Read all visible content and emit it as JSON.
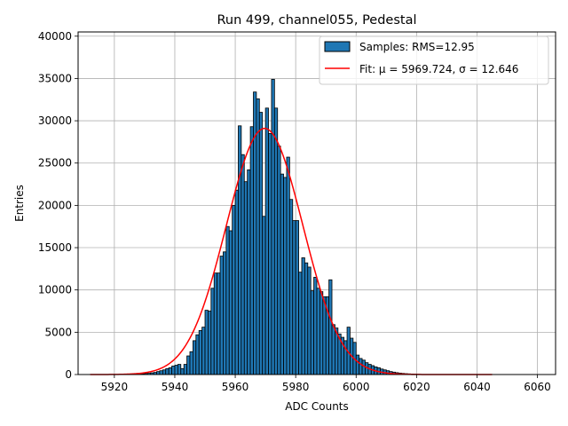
{
  "chart_data": {
    "type": "bar",
    "title": "Run 499, channel055, Pedestal",
    "xlabel": "ADC Counts",
    "ylabel": "Entries",
    "xlim": [
      5908,
      6066
    ],
    "ylim": [
      0,
      40500
    ],
    "xticks": [
      5920,
      5940,
      5960,
      5980,
      6000,
      6020,
      6040,
      6060
    ],
    "yticks": [
      0,
      5000,
      10000,
      15000,
      20000,
      25000,
      30000,
      35000,
      40000
    ],
    "grid": true,
    "legend_position": "top-right",
    "bin_width": 1,
    "histogram": {
      "name": "Samples: RMS=12.95",
      "color": "#1f77b4",
      "edge_color": "#000000",
      "bins": [
        [
          5926,
          30
        ],
        [
          5927,
          50
        ],
        [
          5928,
          70
        ],
        [
          5929,
          90
        ],
        [
          5930,
          120
        ],
        [
          5931,
          150
        ],
        [
          5932,
          200
        ],
        [
          5933,
          250
        ],
        [
          5934,
          350
        ],
        [
          5935,
          450
        ],
        [
          5936,
          550
        ],
        [
          5937,
          700
        ],
        [
          5938,
          800
        ],
        [
          5939,
          1000
        ],
        [
          5940,
          1100
        ],
        [
          5941,
          1200
        ],
        [
          5942,
          700
        ],
        [
          5943,
          1200
        ],
        [
          5944,
          2200
        ],
        [
          5945,
          2700
        ],
        [
          5946,
          4000
        ],
        [
          5947,
          4700
        ],
        [
          5948,
          5200
        ],
        [
          5949,
          5600
        ],
        [
          5950,
          7600
        ],
        [
          5951,
          7500
        ],
        [
          5952,
          10200
        ],
        [
          5953,
          12000
        ],
        [
          5954,
          12000
        ],
        [
          5955,
          14000
        ],
        [
          5956,
          14500
        ],
        [
          5957,
          17500
        ],
        [
          5958,
          17000
        ],
        [
          5959,
          20000
        ],
        [
          5960,
          21800
        ],
        [
          5961,
          29400
        ],
        [
          5962,
          26000
        ],
        [
          5963,
          22800
        ],
        [
          5964,
          24200
        ],
        [
          5965,
          29300
        ],
        [
          5966,
          33400
        ],
        [
          5967,
          32600
        ],
        [
          5968,
          31000
        ],
        [
          5969,
          18700
        ],
        [
          5970,
          31500
        ],
        [
          5971,
          28500
        ],
        [
          5972,
          34900
        ],
        [
          5973,
          31500
        ],
        [
          5974,
          27000
        ],
        [
          5975,
          23700
        ],
        [
          5976,
          23300
        ],
        [
          5977,
          25700
        ],
        [
          5978,
          20700
        ],
        [
          5979,
          18200
        ],
        [
          5980,
          18200
        ],
        [
          5981,
          12100
        ],
        [
          5982,
          13800
        ],
        [
          5983,
          13200
        ],
        [
          5984,
          12700
        ],
        [
          5985,
          9900
        ],
        [
          5986,
          11500
        ],
        [
          5987,
          10200
        ],
        [
          5988,
          9800
        ],
        [
          5989,
          9200
        ],
        [
          5990,
          9200
        ],
        [
          5991,
          11200
        ],
        [
          5992,
          5900
        ],
        [
          5993,
          5500
        ],
        [
          5994,
          4800
        ],
        [
          5995,
          4400
        ],
        [
          5996,
          4000
        ],
        [
          5997,
          5600
        ],
        [
          5998,
          4300
        ],
        [
          5999,
          3800
        ],
        [
          6000,
          2300
        ],
        [
          6001,
          1900
        ],
        [
          6002,
          1700
        ],
        [
          6003,
          1400
        ],
        [
          6004,
          1200
        ],
        [
          6005,
          1050
        ],
        [
          6006,
          900
        ],
        [
          6007,
          800
        ],
        [
          6008,
          650
        ],
        [
          6009,
          550
        ],
        [
          6010,
          450
        ],
        [
          6011,
          350
        ],
        [
          6012,
          280
        ],
        [
          6013,
          220
        ],
        [
          6014,
          170
        ],
        [
          6015,
          130
        ],
        [
          6016,
          100
        ],
        [
          6017,
          80
        ],
        [
          6018,
          60
        ],
        [
          6019,
          45
        ],
        [
          6020,
          30
        ]
      ]
    },
    "fit": {
      "name": "Fit: μ = 5969.724, σ = 12.646",
      "color": "#ff0000",
      "type": "gaussian",
      "mu": 5969.724,
      "sigma": 12.646,
      "amplitude": 29100,
      "x_range": [
        5912,
        6045
      ]
    }
  }
}
